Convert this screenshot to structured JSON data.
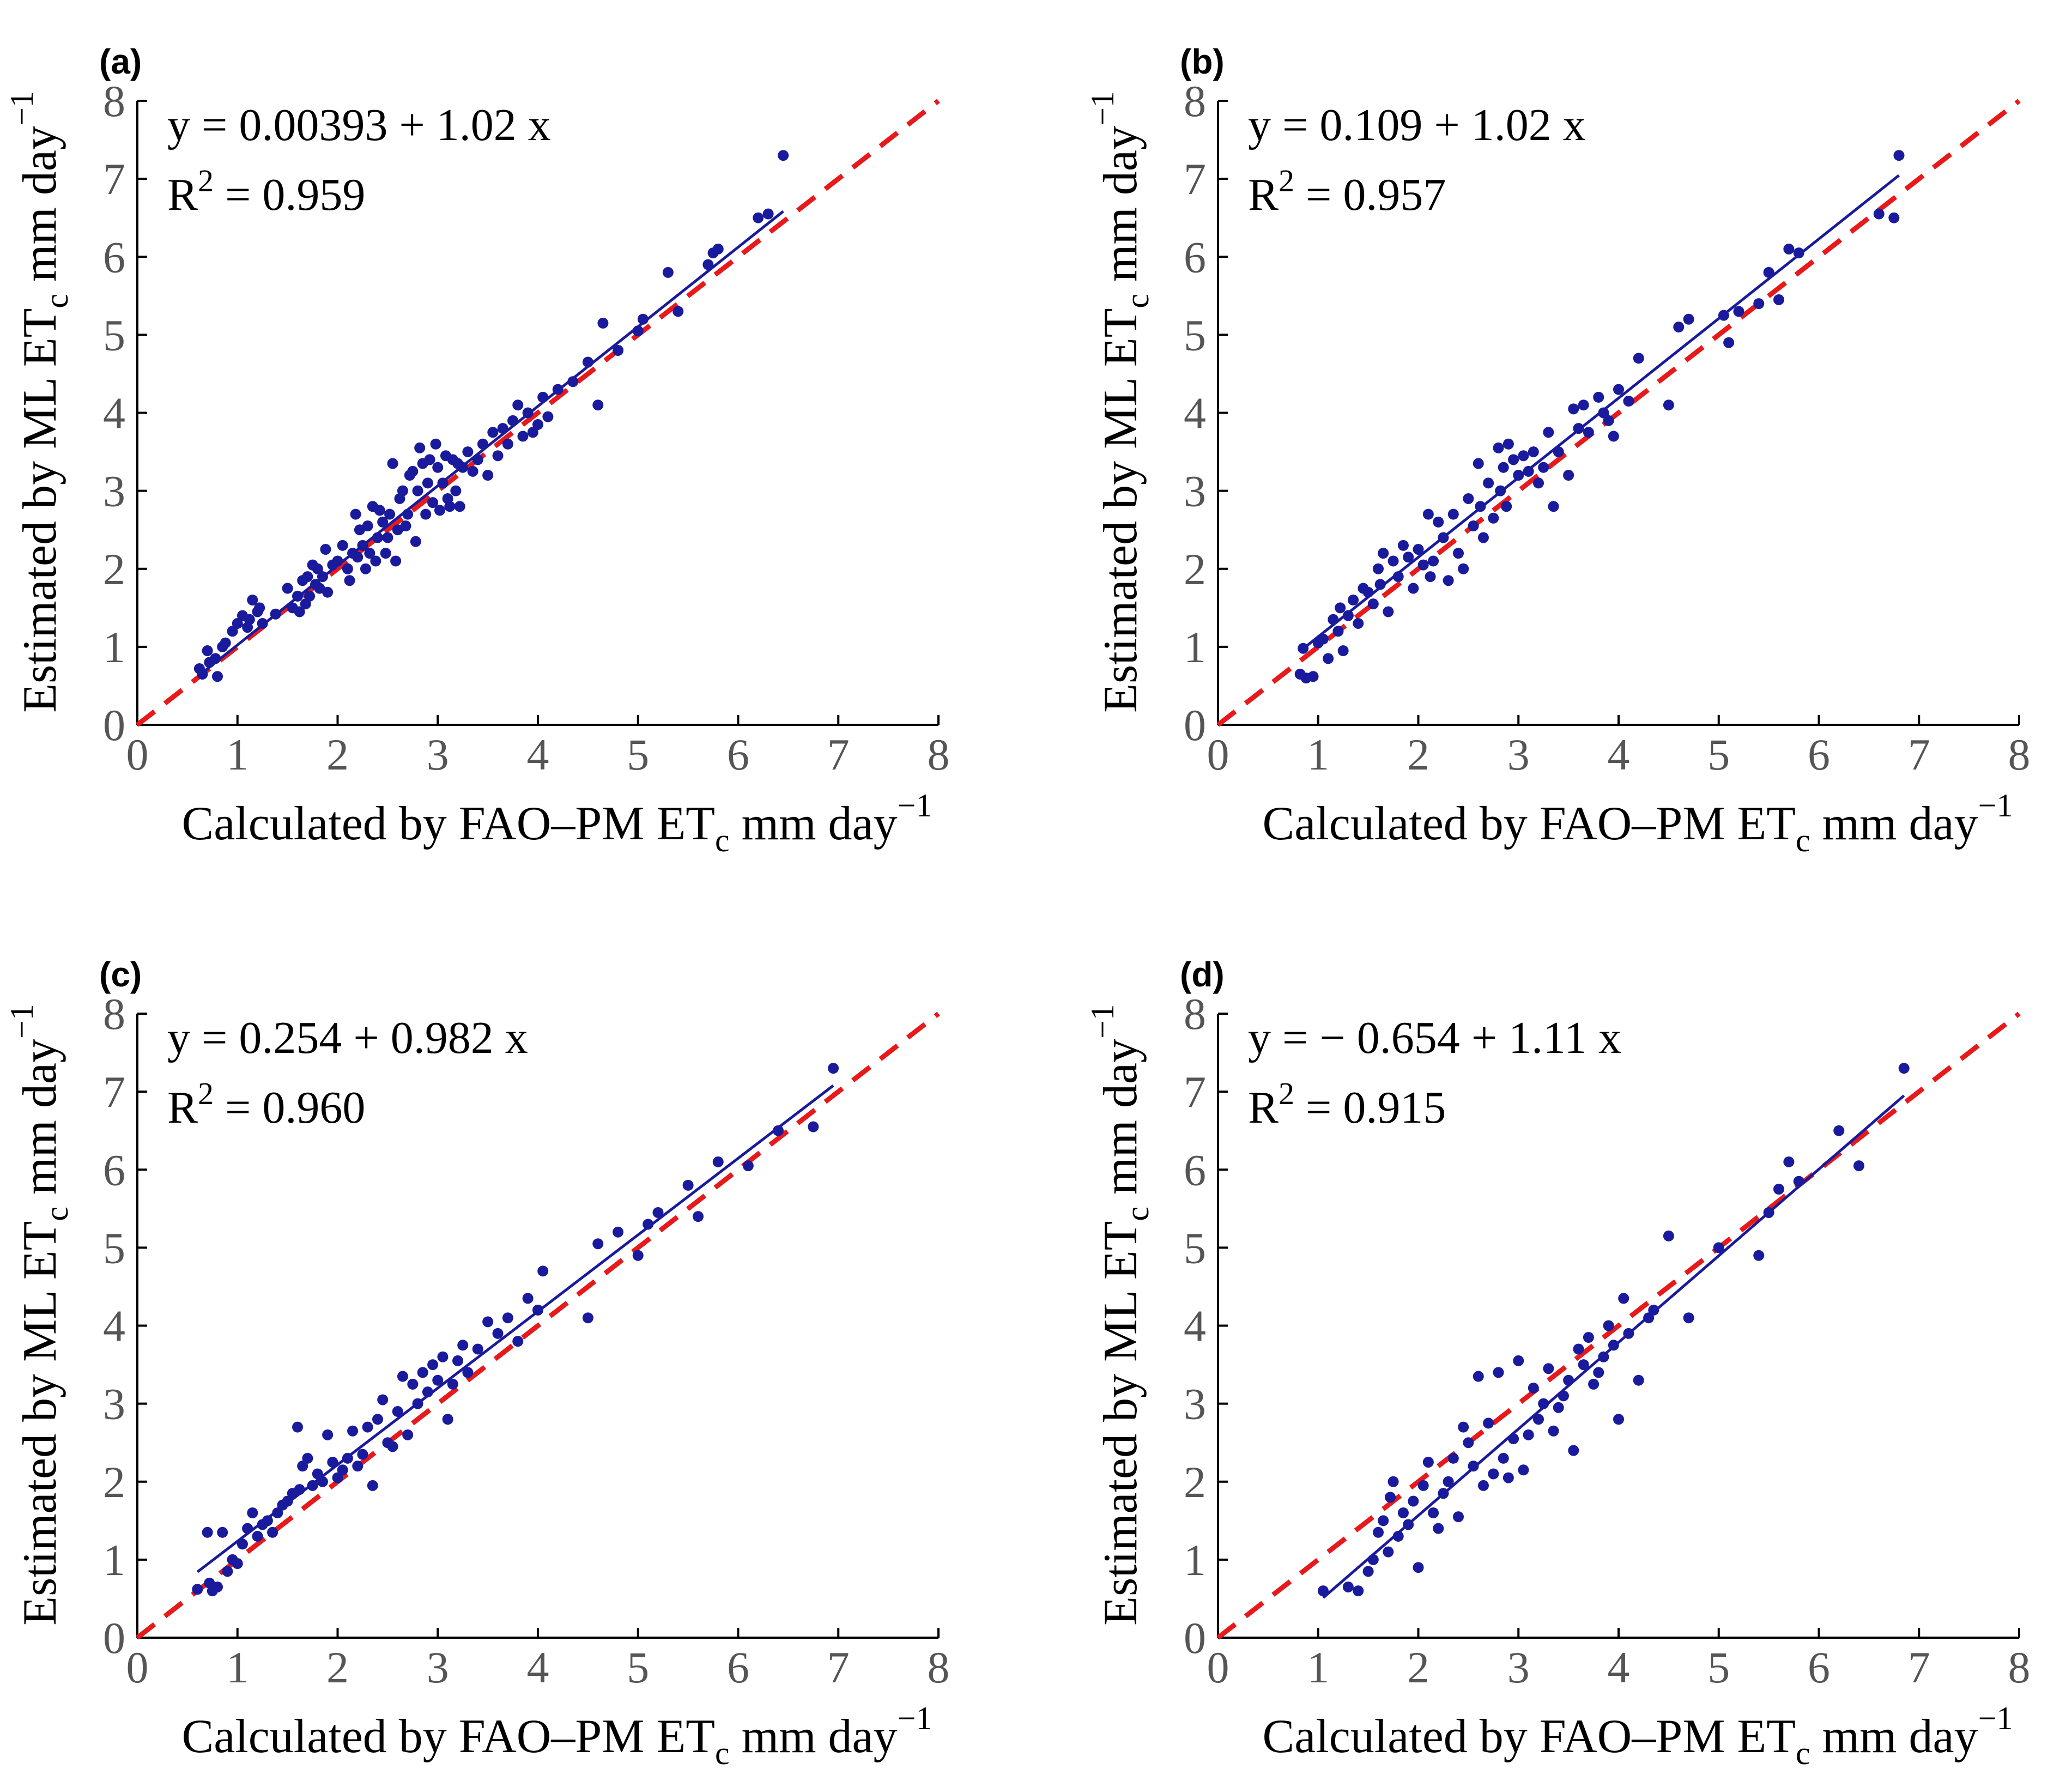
{
  "chart_data": [
    {
      "type": "scatter",
      "panel_label": "(a)",
      "xlabel": {
        "main": "Calculated by FAO–PM  ET",
        "sub": "c",
        "rest": "  mm  day",
        "sup": "−1"
      },
      "ylabel": {
        "main": "Estimated by ML  ET",
        "sub": "c",
        "rest": "  mm  day",
        "sup": "−1"
      },
      "xlim": [
        0,
        8
      ],
      "ylim": [
        0,
        8
      ],
      "xticks": [
        "0",
        "1",
        "2",
        "3",
        "4",
        "5",
        "6",
        "7",
        "8"
      ],
      "yticks": [
        "0",
        "1",
        "2",
        "3",
        "4",
        "5",
        "6",
        "7",
        "8"
      ],
      "equation": "y = 0.00393 + 1.02 x",
      "r2": {
        "prefix": "R",
        "sup": "2",
        "value": " = 0.959"
      },
      "fit": {
        "intercept": 0.00393,
        "slope": 1.02,
        "x_range": [
          0.65,
          6.45
        ]
      },
      "reference": {
        "from": [
          0,
          0
        ],
        "to": [
          8,
          8
        ]
      },
      "series": [
        {
          "x": [
            0.62,
            0.65,
            0.7,
            0.72,
            0.78,
            0.8,
            0.85,
            0.88,
            0.95,
            1.0,
            1.05,
            1.1,
            1.12,
            1.15,
            1.2,
            1.22,
            1.25,
            1.38,
            1.5,
            1.55,
            1.6,
            1.62,
            1.65,
            1.68,
            1.7,
            1.72,
            1.75,
            1.78,
            1.8,
            1.82,
            1.85,
            1.88,
            1.9,
            1.95,
            2.0,
            2.05,
            2.1,
            2.12,
            2.15,
            2.18,
            2.2,
            2.22,
            2.25,
            2.28,
            2.3,
            2.32,
            2.35,
            2.38,
            2.4,
            2.42,
            2.45,
            2.48,
            2.5,
            2.52,
            2.55,
            2.58,
            2.6,
            2.62,
            2.65,
            2.68,
            2.7,
            2.72,
            2.75,
            2.78,
            2.8,
            2.82,
            2.85,
            2.88,
            2.9,
            2.92,
            2.95,
            2.98,
            3.0,
            3.02,
            3.05,
            3.08,
            3.1,
            3.12,
            3.15,
            3.18,
            3.2,
            3.22,
            3.25,
            3.3,
            3.35,
            3.4,
            3.45,
            3.5,
            3.55,
            3.6,
            3.65,
            3.7,
            3.75,
            3.8,
            3.85,
            3.9,
            3.95,
            4.0,
            4.05,
            4.1,
            4.2,
            4.35,
            4.5,
            4.6,
            4.65,
            4.8,
            5.0,
            5.05,
            5.3,
            5.4,
            5.7,
            5.75,
            5.8,
            6.2,
            6.3,
            6.45
          ],
          "y": [
            0.72,
            0.65,
            0.95,
            0.8,
            0.85,
            0.62,
            1.0,
            1.05,
            1.2,
            1.3,
            1.4,
            1.25,
            1.35,
            1.6,
            1.45,
            1.5,
            1.3,
            1.42,
            1.75,
            1.5,
            1.65,
            1.45,
            1.85,
            1.55,
            1.9,
            1.65,
            2.05,
            1.8,
            2.0,
            1.75,
            1.9,
            2.25,
            1.7,
            2.05,
            2.1,
            2.3,
            2.0,
            1.85,
            2.2,
            2.7,
            2.15,
            2.5,
            2.3,
            2.0,
            2.55,
            2.2,
            2.8,
            2.1,
            2.4,
            2.75,
            2.6,
            2.2,
            2.4,
            2.7,
            3.35,
            2.1,
            2.5,
            2.9,
            3.0,
            2.55,
            2.7,
            3.2,
            3.25,
            2.35,
            3.0,
            3.55,
            3.35,
            2.7,
            3.1,
            3.4,
            2.85,
            3.6,
            3.3,
            2.75,
            3.1,
            3.45,
            2.9,
            2.8,
            3.4,
            3.0,
            3.35,
            2.8,
            3.3,
            3.5,
            3.25,
            3.4,
            3.6,
            3.2,
            3.75,
            3.45,
            3.8,
            3.6,
            3.9,
            4.1,
            3.7,
            4.0,
            3.75,
            3.85,
            4.2,
            3.95,
            4.3,
            4.4,
            4.65,
            4.1,
            5.15,
            4.8,
            5.05,
            5.2,
            5.8,
            5.3,
            5.9,
            6.05,
            6.1,
            6.5,
            6.55,
            7.3
          ]
        }
      ]
    },
    {
      "type": "scatter",
      "panel_label": "(b)",
      "xlabel": {
        "main": "Calculated by FAO–PM  ET",
        "sub": "c",
        "rest": "  mm  day",
        "sup": "−1"
      },
      "ylabel": {
        "main": "Estimated by ML  ET",
        "sub": "c",
        "rest": "  mm  day",
        "sup": "−1"
      },
      "xlim": [
        0,
        8
      ],
      "ylim": [
        0,
        8
      ],
      "xticks": [
        "0",
        "1",
        "2",
        "3",
        "4",
        "5",
        "6",
        "7",
        "8"
      ],
      "yticks": [
        "0",
        "1",
        "2",
        "3",
        "4",
        "5",
        "6",
        "7",
        "8"
      ],
      "equation": "y = 0.109 + 1.02 x",
      "r2": {
        "prefix": "R",
        "sup": "2",
        "value": " = 0.957"
      },
      "fit": {
        "intercept": 0.109,
        "slope": 1.02,
        "x_range": [
          0.85,
          6.8
        ]
      },
      "reference": {
        "from": [
          0,
          0
        ],
        "to": [
          8,
          8
        ]
      },
      "series": [
        {
          "x": [
            0.82,
            0.85,
            0.88,
            0.95,
            1.0,
            1.05,
            1.1,
            1.15,
            1.2,
            1.22,
            1.25,
            1.3,
            1.35,
            1.4,
            1.45,
            1.5,
            1.55,
            1.6,
            1.62,
            1.65,
            1.7,
            1.75,
            1.8,
            1.85,
            1.9,
            1.95,
            2.0,
            2.05,
            2.1,
            2.12,
            2.15,
            2.2,
            2.25,
            2.3,
            2.35,
            2.4,
            2.45,
            2.5,
            2.55,
            2.6,
            2.62,
            2.65,
            2.7,
            2.75,
            2.8,
            2.82,
            2.85,
            2.88,
            2.9,
            2.95,
            3.0,
            3.05,
            3.1,
            3.15,
            3.2,
            3.25,
            3.3,
            3.35,
            3.4,
            3.5,
            3.55,
            3.6,
            3.65,
            3.7,
            3.8,
            3.85,
            3.9,
            3.95,
            4.0,
            4.1,
            4.2,
            4.5,
            4.6,
            4.7,
            5.05,
            5.1,
            5.2,
            5.4,
            5.5,
            5.6,
            5.7,
            5.8,
            6.6,
            6.75,
            6.8
          ],
          "y": [
            0.65,
            0.98,
            0.6,
            0.62,
            1.05,
            1.1,
            0.85,
            1.35,
            1.2,
            1.5,
            0.95,
            1.4,
            1.6,
            1.3,
            1.75,
            1.7,
            1.55,
            2.0,
            1.8,
            2.2,
            1.45,
            2.1,
            1.9,
            2.3,
            2.15,
            1.75,
            2.25,
            2.05,
            2.7,
            1.9,
            2.1,
            2.6,
            2.4,
            1.85,
            2.7,
            2.2,
            2.0,
            2.9,
            2.55,
            3.35,
            2.8,
            2.4,
            3.1,
            2.65,
            3.55,
            3.0,
            3.3,
            2.8,
            3.6,
            3.4,
            3.2,
            3.45,
            3.25,
            3.5,
            3.1,
            3.3,
            3.75,
            2.8,
            3.5,
            3.2,
            4.05,
            3.8,
            4.1,
            3.75,
            4.2,
            4.0,
            3.9,
            3.7,
            4.3,
            4.15,
            4.7,
            4.1,
            5.1,
            5.2,
            5.25,
            4.9,
            5.3,
            5.4,
            5.8,
            5.45,
            6.1,
            6.05,
            6.55,
            6.5,
            7.3
          ]
        }
      ]
    },
    {
      "type": "scatter",
      "panel_label": "(c)",
      "xlabel": {
        "main": "Calculated by FAO–PM  ET",
        "sub": "c",
        "rest": "  mm  day",
        "sup": "−1"
      },
      "ylabel": {
        "main": "Estimated by ML  ET",
        "sub": "c",
        "rest": "  mm  day",
        "sup": "−1"
      },
      "xlim": [
        0,
        8
      ],
      "ylim": [
        0,
        8
      ],
      "xticks": [
        "0",
        "1",
        "2",
        "3",
        "4",
        "5",
        "6",
        "7",
        "8"
      ],
      "yticks": [
        "0",
        "1",
        "2",
        "3",
        "4",
        "5",
        "6",
        "7",
        "8"
      ],
      "equation": "y = 0.254 + 0.982 x",
      "r2": {
        "prefix": "R",
        "sup": "2",
        "value": " = 0.960"
      },
      "fit": {
        "intercept": 0.254,
        "slope": 0.982,
        "x_range": [
          0.6,
          6.95
        ]
      },
      "reference": {
        "from": [
          0,
          0
        ],
        "to": [
          8,
          8
        ]
      },
      "series": [
        {
          "x": [
            0.6,
            0.7,
            0.72,
            0.75,
            0.8,
            0.85,
            0.9,
            0.95,
            1.0,
            1.05,
            1.1,
            1.15,
            1.2,
            1.25,
            1.3,
            1.35,
            1.4,
            1.45,
            1.5,
            1.55,
            1.6,
            1.62,
            1.65,
            1.7,
            1.75,
            1.8,
            1.85,
            1.9,
            1.95,
            2.0,
            2.05,
            2.1,
            2.15,
            2.2,
            2.25,
            2.3,
            2.35,
            2.4,
            2.45,
            2.5,
            2.55,
            2.6,
            2.65,
            2.7,
            2.75,
            2.8,
            2.85,
            2.9,
            2.95,
            3.0,
            3.05,
            3.1,
            3.15,
            3.2,
            3.25,
            3.3,
            3.4,
            3.5,
            3.6,
            3.7,
            3.8,
            3.9,
            4.0,
            4.05,
            4.5,
            4.6,
            4.8,
            5.0,
            5.1,
            5.2,
            5.5,
            5.6,
            5.8,
            6.1,
            6.4,
            6.75,
            6.95
          ],
          "y": [
            0.62,
            1.35,
            0.7,
            0.6,
            0.65,
            1.35,
            0.85,
            1.0,
            0.95,
            1.2,
            1.4,
            1.6,
            1.3,
            1.45,
            1.5,
            1.35,
            1.6,
            1.7,
            1.75,
            1.85,
            2.7,
            1.9,
            2.2,
            2.3,
            1.95,
            2.1,
            2.0,
            2.6,
            2.25,
            2.05,
            2.15,
            2.3,
            2.65,
            2.2,
            2.35,
            2.7,
            1.95,
            2.8,
            3.05,
            2.5,
            2.45,
            2.9,
            3.35,
            2.6,
            3.25,
            3.0,
            3.4,
            3.15,
            3.5,
            3.3,
            3.6,
            2.8,
            3.25,
            3.55,
            3.75,
            3.4,
            3.7,
            4.05,
            3.9,
            4.1,
            3.8,
            4.35,
            4.2,
            4.7,
            4.1,
            5.05,
            5.2,
            4.9,
            5.3,
            5.45,
            5.8,
            5.4,
            6.1,
            6.05,
            6.5,
            6.55,
            7.3
          ]
        }
      ]
    },
    {
      "type": "scatter",
      "panel_label": "(d)",
      "xlabel": {
        "main": "Calculated by FAO–PM  ET",
        "sub": "c",
        "rest": "  mm  day",
        "sup": "−1"
      },
      "ylabel": {
        "main": "Estimated by ML  ET",
        "sub": "c",
        "rest": "  mm  day",
        "sup": "−1"
      },
      "xlim": [
        0,
        8
      ],
      "ylim": [
        0,
        8
      ],
      "xticks": [
        "0",
        "1",
        "2",
        "3",
        "4",
        "5",
        "6",
        "7",
        "8"
      ],
      "yticks": [
        "0",
        "1",
        "2",
        "3",
        "4",
        "5",
        "6",
        "7",
        "8"
      ],
      "equation": "y = − 0.654 + 1.11 x",
      "r2": {
        "prefix": "R",
        "sup": "2",
        "value": " = 0.915"
      },
      "fit": {
        "intercept": -0.654,
        "slope": 1.11,
        "x_range": [
          1.05,
          6.85
        ]
      },
      "reference": {
        "from": [
          0,
          0
        ],
        "to": [
          8,
          8
        ]
      },
      "series": [
        {
          "x": [
            1.05,
            1.3,
            1.4,
            1.5,
            1.55,
            1.6,
            1.65,
            1.7,
            1.72,
            1.75,
            1.8,
            1.85,
            1.9,
            1.95,
            2.0,
            2.05,
            2.1,
            2.15,
            2.2,
            2.25,
            2.3,
            2.35,
            2.4,
            2.45,
            2.5,
            2.55,
            2.6,
            2.65,
            2.7,
            2.75,
            2.8,
            2.85,
            2.9,
            2.95,
            3.0,
            3.05,
            3.1,
            3.15,
            3.2,
            3.25,
            3.3,
            3.35,
            3.4,
            3.45,
            3.5,
            3.55,
            3.6,
            3.65,
            3.7,
            3.75,
            3.8,
            3.85,
            3.9,
            3.95,
            4.0,
            4.05,
            4.1,
            4.2,
            4.3,
            4.35,
            4.5,
            4.7,
            5.0,
            5.4,
            5.5,
            5.6,
            5.7,
            5.8,
            6.2,
            6.4,
            6.85
          ],
          "y": [
            0.6,
            0.65,
            0.6,
            0.85,
            1.0,
            1.35,
            1.5,
            1.1,
            1.8,
            2.0,
            1.3,
            1.6,
            1.45,
            1.75,
            0.9,
            1.95,
            2.25,
            1.6,
            1.4,
            1.85,
            2.0,
            2.3,
            1.55,
            2.7,
            2.5,
            2.2,
            3.35,
            1.95,
            2.75,
            2.1,
            3.4,
            2.3,
            2.05,
            2.55,
            3.55,
            2.15,
            2.6,
            3.2,
            2.8,
            3.0,
            3.45,
            2.65,
            2.95,
            3.1,
            3.3,
            2.4,
            3.7,
            3.5,
            3.85,
            3.25,
            3.4,
            3.6,
            4.0,
            3.75,
            2.8,
            4.35,
            3.9,
            3.3,
            4.1,
            4.2,
            5.15,
            4.1,
            5.0,
            4.9,
            5.45,
            5.75,
            6.1,
            5.85,
            6.5,
            6.05,
            7.3
          ]
        }
      ]
    }
  ]
}
